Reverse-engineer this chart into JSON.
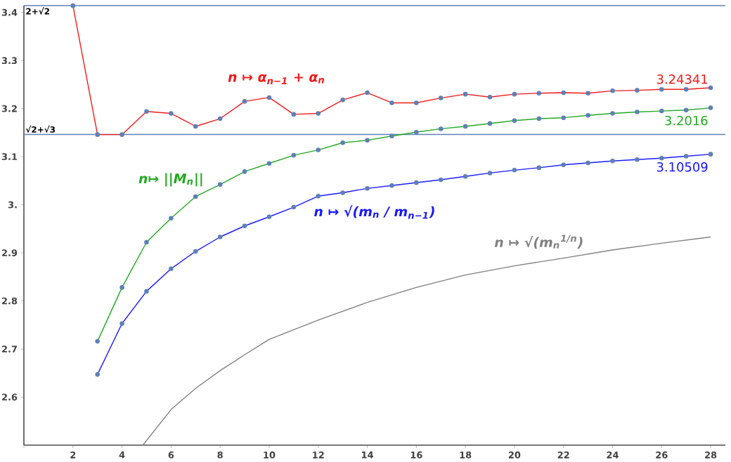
{
  "chart_data": {
    "type": "line",
    "xlim": [
      0,
      28.6
    ],
    "ylim": [
      2.5,
      3.4142
    ],
    "xticks": [
      {
        "value": 0,
        "label": null
      },
      2,
      4,
      6,
      8,
      10,
      12,
      14,
      16,
      18,
      20,
      22,
      24,
      26,
      28
    ],
    "yticks": [
      2.6,
      2.7,
      2.8,
      2.9,
      {
        "value": 3,
        "label": "3."
      },
      3.1,
      3.2,
      3.3,
      3.4
    ],
    "grid": false,
    "marker": "circle",
    "ref_lines": [
      {
        "axis": "y",
        "value": 3.4142,
        "label": "2+√2",
        "color": "#5e81b5"
      },
      {
        "axis": "y",
        "value": 3.1463,
        "label": "√2+√3",
        "color": "#5e81b5"
      }
    ],
    "series": [
      {
        "name": "n ↦ α$_{n−1}$ + α$_{n}$",
        "color": "#f01a1a",
        "x": [
          2,
          3,
          4,
          5,
          6,
          7,
          8,
          9,
          10,
          11,
          12,
          13,
          14,
          15,
          16,
          17,
          18,
          19,
          20,
          21,
          22,
          23,
          24,
          25,
          26,
          27,
          28
        ],
        "values": [
          3.414,
          3.146,
          3.146,
          3.194,
          3.19,
          3.163,
          3.179,
          3.215,
          3.223,
          3.188,
          3.19,
          3.218,
          3.233,
          3.212,
          3.212,
          3.222,
          3.23,
          3.224,
          3.23,
          3.232,
          3.233,
          3.232,
          3.237,
          3.238,
          3.24,
          3.24,
          3.24341
        ],
        "value_labels": [
          null,
          null,
          null,
          null,
          null,
          null,
          null,
          null,
          null,
          null,
          null,
          null,
          null,
          null,
          null,
          null,
          null,
          null,
          null,
          null,
          null,
          null,
          null,
          null,
          null,
          null,
          "3.24341"
        ]
      },
      {
        "name": "n↦ ||*M*$_{n}$||",
        "color": "#22aa22",
        "x": [
          3,
          4,
          5,
          6,
          7,
          8,
          9,
          10,
          11,
          12,
          13,
          14,
          15,
          16,
          17,
          18,
          19,
          20,
          21,
          22,
          23,
          24,
          25,
          26,
          27,
          28
        ],
        "values": [
          2.716,
          2.828,
          2.922,
          2.972,
          3.017,
          3.042,
          3.069,
          3.086,
          3.103,
          3.114,
          3.129,
          3.134,
          3.143,
          3.151,
          3.158,
          3.163,
          3.169,
          3.175,
          3.179,
          3.181,
          3.186,
          3.19,
          3.193,
          3.195,
          3.197,
          3.2016
        ],
        "value_labels": [
          null,
          null,
          null,
          null,
          null,
          null,
          null,
          null,
          null,
          null,
          null,
          null,
          null,
          null,
          null,
          null,
          null,
          null,
          null,
          null,
          null,
          null,
          null,
          null,
          null,
          "3.2016"
        ]
      },
      {
        "name": "n ↦ √(m$_{n}$ / m$_{n−1}$)",
        "color": "#1a1aff",
        "x": [
          3,
          4,
          5,
          6,
          7,
          8,
          9,
          10,
          11,
          12,
          13,
          14,
          15,
          16,
          17,
          18,
          19,
          20,
          21,
          22,
          23,
          24,
          25,
          26,
          27,
          28
        ],
        "values": [
          2.647,
          2.753,
          2.82,
          2.867,
          2.903,
          2.933,
          2.956,
          2.975,
          2.995,
          3.018,
          3.025,
          3.034,
          3.04,
          3.046,
          3.052,
          3.059,
          3.066,
          3.072,
          3.077,
          3.083,
          3.087,
          3.091,
          3.094,
          3.097,
          3.101,
          3.10509
        ],
        "value_labels": [
          null,
          null,
          null,
          null,
          null,
          null,
          null,
          null,
          null,
          null,
          null,
          null,
          null,
          null,
          null,
          null,
          null,
          null,
          null,
          null,
          null,
          null,
          null,
          null,
          null,
          "3.10509"
        ]
      },
      {
        "name": "n ↦ √(m$_{n}$$^{1/n}$)",
        "color": "#808080",
        "marker": "none",
        "x": [
          4.85,
          6,
          7,
          8,
          9,
          10,
          12,
          14,
          16,
          18,
          20,
          22,
          24,
          26,
          28
        ],
        "values": [
          2.5,
          2.574,
          2.618,
          2.655,
          2.688,
          2.72,
          2.76,
          2.797,
          2.828,
          2.854,
          2.873,
          2.889,
          2.906,
          2.92,
          2.933
        ]
      }
    ]
  }
}
